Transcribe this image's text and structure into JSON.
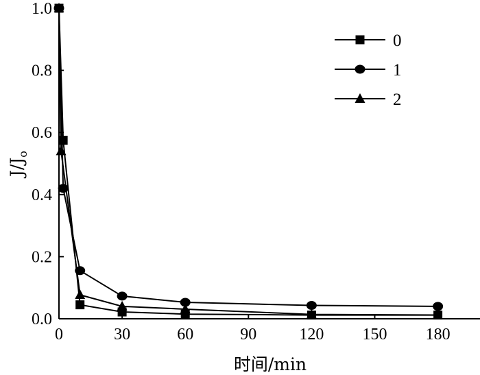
{
  "chart_data": {
    "type": "line",
    "xlabel": "时间/min",
    "ylabel": "J/J",
    "ylabel_subscript": "o",
    "xlim": [
      0,
      200
    ],
    "ylim": [
      0,
      1.0
    ],
    "xticks": [
      0,
      30,
      60,
      90,
      120,
      150,
      180
    ],
    "yticks": [
      "0.0",
      "0.2",
      "0.4",
      "0.6",
      "0.8",
      "1.0"
    ],
    "grid": false,
    "legend_position": "top-right",
    "series": [
      {
        "name": "0",
        "marker": "square",
        "x": [
          0,
          2,
          10,
          30,
          60,
          120,
          180
        ],
        "y": [
          1.0,
          0.575,
          0.045,
          0.022,
          0.015,
          0.012,
          0.012
        ]
      },
      {
        "name": "1",
        "marker": "circle",
        "x": [
          0,
          2,
          10,
          30,
          60,
          120,
          180
        ],
        "y": [
          1.0,
          0.42,
          0.155,
          0.073,
          0.053,
          0.043,
          0.04
        ]
      },
      {
        "name": "2",
        "marker": "triangle",
        "x": [
          0,
          1,
          10,
          30,
          60,
          120,
          180
        ],
        "y": [
          1.0,
          0.54,
          0.077,
          0.04,
          0.031,
          0.014,
          0.012
        ]
      }
    ]
  }
}
